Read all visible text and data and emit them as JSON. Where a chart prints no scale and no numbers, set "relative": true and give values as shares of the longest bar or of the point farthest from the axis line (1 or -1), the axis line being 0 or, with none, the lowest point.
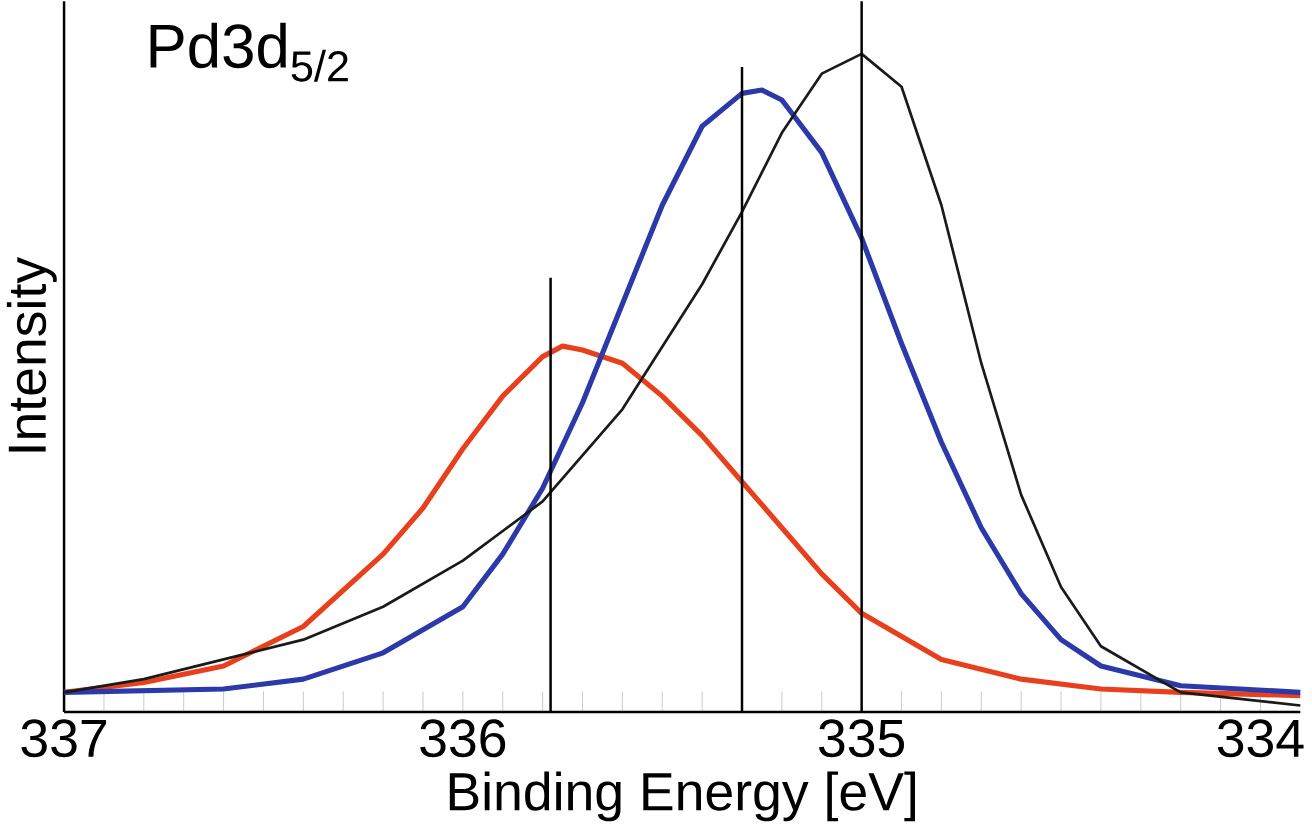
{
  "chart_data": {
    "type": "line",
    "relative": true,
    "xlabel": "Binding Energy [eV]",
    "ylabel": "Intensity",
    "annotations": [
      "Pd3d$_{5/2}$"
    ],
    "xlim": [
      337,
      333.9
    ],
    "xticks": [
      337,
      {
        "value": 336.9,
        "label": null
      },
      {
        "value": 336.8,
        "label": null
      },
      {
        "value": 336.7,
        "label": null
      },
      {
        "value": 336.6,
        "label": null
      },
      {
        "value": 336.5,
        "label": null
      },
      {
        "value": 336.4,
        "label": null
      },
      {
        "value": 336.3,
        "label": null
      },
      {
        "value": 336.2,
        "label": null
      },
      {
        "value": 336.1,
        "label": null
      },
      336,
      {
        "value": 335.9,
        "label": null
      },
      {
        "value": 335.8,
        "label": null
      },
      {
        "value": 335.7,
        "label": null
      },
      {
        "value": 335.6,
        "label": null
      },
      {
        "value": 335.5,
        "label": null
      },
      {
        "value": 335.4,
        "label": null
      },
      {
        "value": 335.3,
        "label": null
      },
      {
        "value": 335.2,
        "label": null
      },
      {
        "value": 335.1,
        "label": null
      },
      335,
      {
        "value": 334.9,
        "label": null
      },
      {
        "value": 334.8,
        "label": null
      },
      {
        "value": 334.7,
        "label": null
      },
      {
        "value": 334.6,
        "label": null
      },
      {
        "value": 334.5,
        "label": null
      },
      {
        "value": 334.4,
        "label": null
      },
      {
        "value": 334.3,
        "label": null
      },
      {
        "value": 334.2,
        "label": null
      },
      {
        "value": 334.1,
        "label": null
      },
      334
    ],
    "ref_lines": [
      {
        "axis": "x",
        "value": 335.78,
        "color": "#000000"
      },
      {
        "axis": "x",
        "value": 335.3,
        "color": "#000000"
      },
      {
        "axis": "x",
        "value": 335.0,
        "color": "#000000"
      }
    ],
    "series": [
      {
        "color": "#e8401c",
        "x": [
          337,
          336.8,
          336.6,
          336.4,
          336.2,
          336.1,
          336.0,
          335.9,
          335.8,
          335.75,
          335.7,
          335.6,
          335.5,
          335.4,
          335.3,
          335.2,
          335.1,
          335.0,
          334.8,
          334.6,
          334.4,
          334.2,
          333.9
        ],
        "values": [
          0.03,
          0.045,
          0.07,
          0.13,
          0.24,
          0.31,
          0.4,
          0.48,
          0.54,
          0.556,
          0.55,
          0.53,
          0.48,
          0.42,
          0.35,
          0.28,
          0.21,
          0.15,
          0.08,
          0.05,
          0.035,
          0.03,
          0.025
        ]
      },
      {
        "color": "#2b3aa8",
        "x": [
          337,
          336.6,
          336.4,
          336.2,
          336.0,
          335.9,
          335.8,
          335.7,
          335.6,
          335.5,
          335.4,
          335.3,
          335.25,
          335.2,
          335.1,
          335.0,
          334.9,
          334.8,
          334.7,
          334.6,
          334.5,
          334.4,
          334.2,
          333.9
        ],
        "values": [
          0.03,
          0.035,
          0.05,
          0.09,
          0.16,
          0.24,
          0.34,
          0.47,
          0.62,
          0.77,
          0.89,
          0.94,
          0.945,
          0.93,
          0.85,
          0.72,
          0.56,
          0.41,
          0.28,
          0.18,
          0.11,
          0.07,
          0.04,
          0.03
        ]
      },
      {
        "color": "#1a1a1a",
        "x": [
          337,
          336.8,
          336.6,
          336.4,
          336.2,
          336.0,
          335.8,
          335.6,
          335.4,
          335.3,
          335.2,
          335.1,
          335.0,
          334.9,
          334.8,
          334.7,
          334.6,
          334.5,
          334.4,
          334.2,
          333.9
        ],
        "values": [
          0.03,
          0.05,
          0.08,
          0.11,
          0.16,
          0.23,
          0.32,
          0.46,
          0.65,
          0.76,
          0.88,
          0.97,
          1.0,
          0.95,
          0.77,
          0.53,
          0.33,
          0.19,
          0.1,
          0.03,
          0.01
        ]
      }
    ]
  }
}
